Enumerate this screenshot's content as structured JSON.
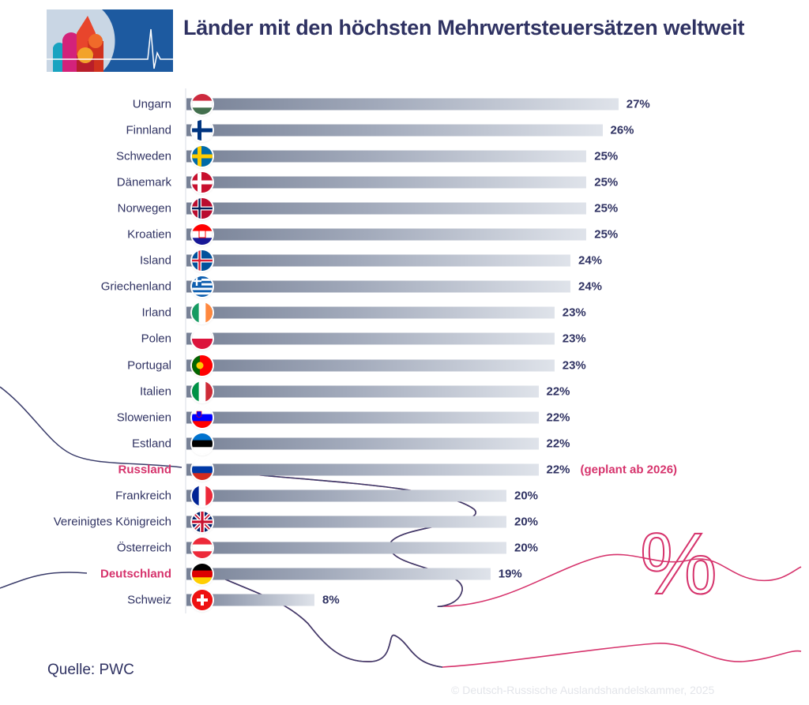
{
  "title": "Länder mit den höchsten Mehrwertsteuersätzen weltweit",
  "source": "Quelle: PWC",
  "copyright": "© Deutsch-Russische Auslandshandelskammer, 2025",
  "colors": {
    "title": "#2f3262",
    "highlight": "#d6336c",
    "bar_dark": "#778196",
    "bar_light": "#dfe3ea"
  },
  "chart_data": {
    "type": "bar",
    "orientation": "horizontal",
    "title": "Länder mit den höchsten Mehrwertsteuersätzen weltweit",
    "unit": "%",
    "categories": [
      "Ungarn",
      "Finnland",
      "Schweden",
      "Dänemark",
      "Norwegen",
      "Kroatien",
      "Island",
      "Griechenland",
      "Irland",
      "Polen",
      "Portugal",
      "Italien",
      "Slowenien",
      "Estland",
      "Russland",
      "Frankreich",
      "Vereinigtes Königreich",
      "Österreich",
      "Deutschland",
      "Schweiz"
    ],
    "values": [
      27,
      26,
      25,
      25,
      25,
      25,
      24,
      24,
      23,
      23,
      23,
      22,
      22,
      22,
      22,
      20,
      20,
      20,
      19,
      8
    ],
    "labels": [
      "27%",
      "26%",
      "25%",
      "25%",
      "25%",
      "25%",
      "24%",
      "24%",
      "23%",
      "23%",
      "23%",
      "22%",
      "22%",
      "22%",
      "22%",
      "20%",
      "20%",
      "20%",
      "19%",
      "8%"
    ],
    "flags": [
      "hu",
      "fi",
      "se",
      "dk",
      "no",
      "hr",
      "is",
      "gr",
      "ie",
      "pl",
      "pt",
      "it",
      "si",
      "ee",
      "ru",
      "fr",
      "gb",
      "at",
      "de",
      "ch"
    ],
    "highlighted": [
      "Russland",
      "Deutschland"
    ],
    "annotations": [
      {
        "category": "Russland",
        "text": "(geplant ab 2026)"
      }
    ],
    "grid": false
  }
}
